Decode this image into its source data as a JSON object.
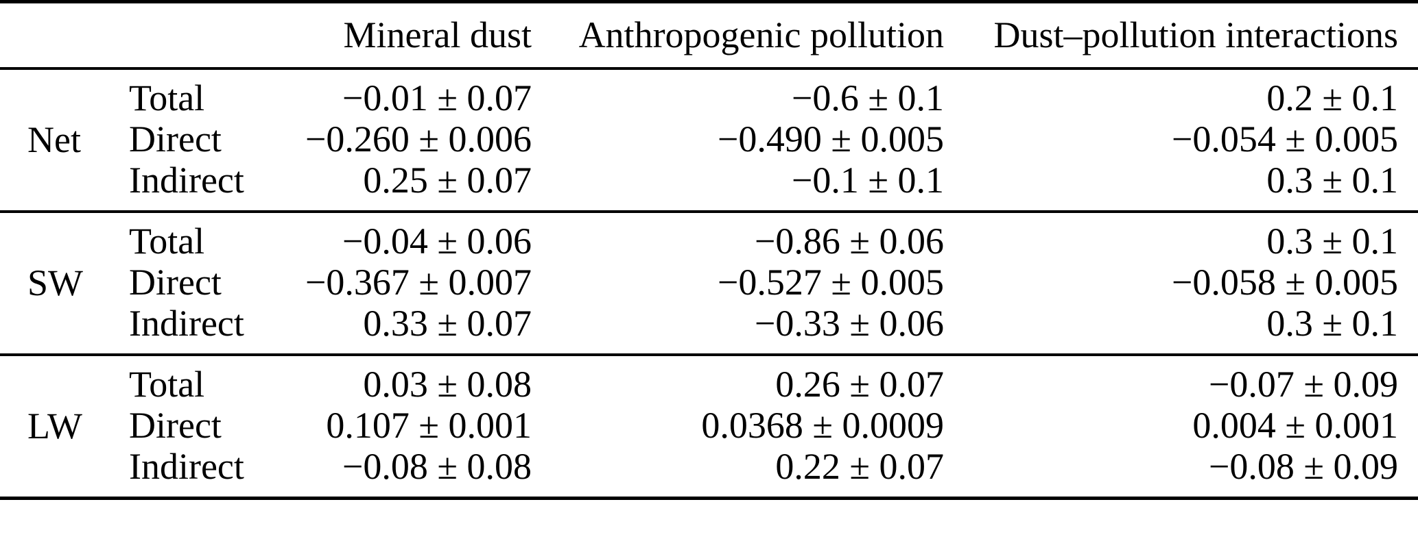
{
  "page": {
    "background_color": "#ffffff",
    "text_color": "#000000",
    "rule_color": "#000000"
  },
  "chart_data": {
    "type": "table",
    "column_headers": [
      "Mineral dust",
      "Anthropogenic pollution",
      "Dust–pollution interactions"
    ],
    "row_groups": [
      {
        "label": "Net",
        "rows": [
          {
            "type": "Total",
            "values": [
              "−0.01 ± 0.07",
              "−0.6 ± 0.1",
              "0.2 ± 0.1"
            ]
          },
          {
            "type": "Direct",
            "values": [
              "−0.260 ± 0.006",
              "−0.490 ± 0.005",
              "−0.054 ± 0.005"
            ]
          },
          {
            "type": "Indirect",
            "values": [
              "0.25 ± 0.07",
              "−0.1 ± 0.1",
              "0.3 ± 0.1"
            ]
          }
        ]
      },
      {
        "label": "SW",
        "rows": [
          {
            "type": "Total",
            "values": [
              "−0.04 ± 0.06",
              "−0.86 ± 0.06",
              "0.3 ± 0.1"
            ]
          },
          {
            "type": "Direct",
            "values": [
              "−0.367 ± 0.007",
              "−0.527 ± 0.005",
              "−0.058 ± 0.005"
            ]
          },
          {
            "type": "Indirect",
            "values": [
              "0.33 ± 0.07",
              "−0.33 ± 0.06",
              "0.3 ± 0.1"
            ]
          }
        ]
      },
      {
        "label": "LW",
        "rows": [
          {
            "type": "Total",
            "values": [
              "0.03 ± 0.08",
              "0.26 ± 0.07",
              "−0.07 ± 0.09"
            ]
          },
          {
            "type": "Direct",
            "values": [
              "0.107 ± 0.001",
              "0.0368 ± 0.0009",
              "0.004 ± 0.001"
            ]
          },
          {
            "type": "Indirect",
            "values": [
              "−0.08 ± 0.08",
              "0.22 ± 0.07",
              "−0.08 ± 0.09"
            ]
          }
        ]
      }
    ]
  }
}
